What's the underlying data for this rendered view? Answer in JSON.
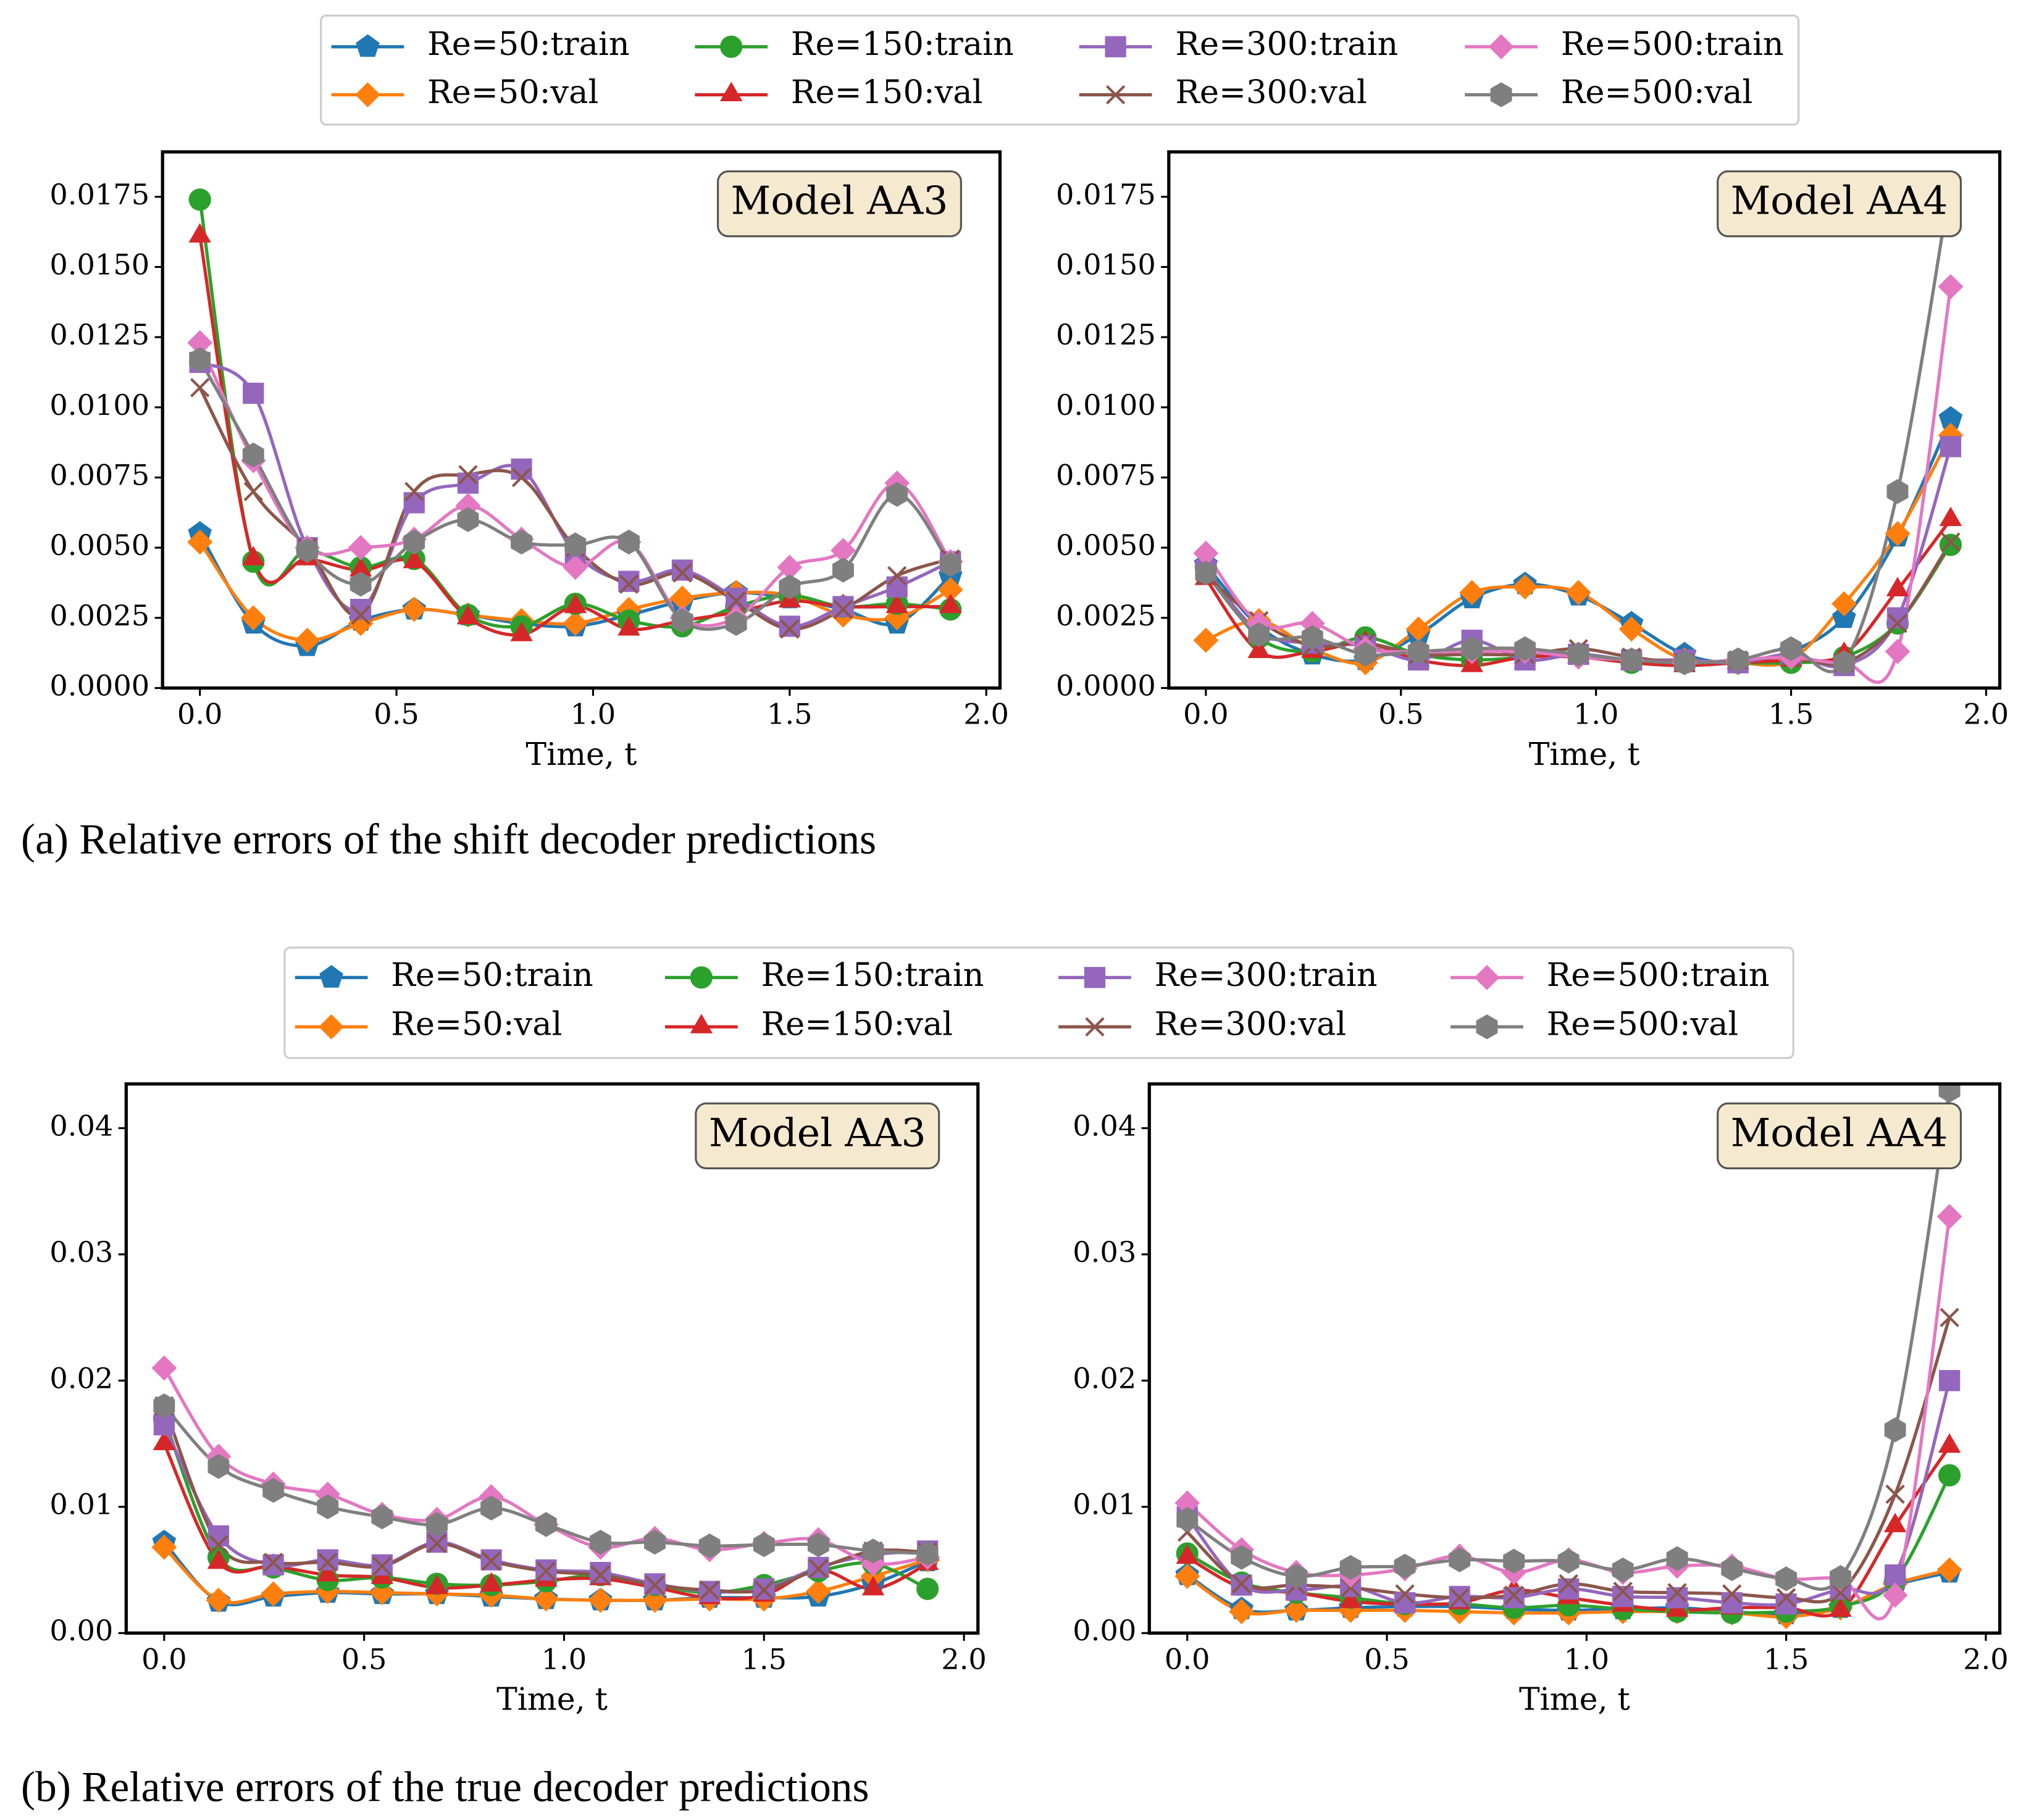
{
  "captions": [
    "(a) Relative errors of the shift decoder predictions",
    "(b) Relative errors of the true decoder predictions"
  ],
  "chart_data": [
    {
      "type": "line",
      "annotation": "Model AA3",
      "xlabel": "Time, t",
      "legend": "upper center",
      "x": [
        0,
        0.136,
        0.273,
        0.409,
        0.545,
        0.682,
        0.818,
        0.955,
        1.091,
        1.227,
        1.364,
        1.5,
        1.636,
        1.773,
        1.909
      ],
      "xlim": [
        -0.095,
        2.035
      ],
      "xticks": [
        {
          "value": 0,
          "label": "0.0"
        },
        {
          "value": 0.5,
          "label": "0.5"
        },
        {
          "value": 1,
          "label": "1.0"
        },
        {
          "value": 1.5,
          "label": "1.5"
        },
        {
          "value": 2,
          "label": "2.0"
        }
      ],
      "ylim": [
        0,
        0.0191
      ],
      "yticks": [
        {
          "value": 0,
          "label": "0.0000"
        },
        {
          "value": 0.0025,
          "label": "0.0025"
        },
        {
          "value": 0.005,
          "label": "0.0050"
        },
        {
          "value": 0.0075,
          "label": "0.0075"
        },
        {
          "value": 0.01,
          "label": "0.0100"
        },
        {
          "value": 0.0125,
          "label": "0.0125"
        },
        {
          "value": 0.015,
          "label": "0.0150"
        },
        {
          "value": 0.0175,
          "label": "0.0175"
        }
      ],
      "series": [
        {
          "name": "Re=50:train",
          "color": "#1f77b4",
          "marker": "pentagon",
          "values": [
            0.0055,
            0.0023,
            0.0015,
            0.0024,
            0.0028,
            0.0026,
            0.0023,
            0.0022,
            0.0026,
            0.0031,
            0.0034,
            0.0032,
            0.0028,
            0.0023,
            0.004
          ]
        },
        {
          "name": "Re=50:val",
          "color": "#ff7f0e",
          "marker": "diamond",
          "values": [
            0.0052,
            0.0025,
            0.0017,
            0.0023,
            0.0028,
            0.0026,
            0.0024,
            0.0023,
            0.0028,
            0.0032,
            0.0034,
            0.0033,
            0.0026,
            0.0025,
            0.0035
          ]
        },
        {
          "name": "Re=150:train",
          "color": "#2ca02c",
          "marker": "circle",
          "values": [
            0.0174,
            0.0045,
            0.0049,
            0.0043,
            0.0046,
            0.0026,
            0.0022,
            0.003,
            0.0024,
            0.0022,
            0.0029,
            0.0033,
            0.0029,
            0.003,
            0.0028
          ]
        },
        {
          "name": "Re=150:val",
          "color": "#d62728",
          "marker": "triangle",
          "values": [
            0.0161,
            0.0046,
            0.0046,
            0.0042,
            0.0045,
            0.0025,
            0.0019,
            0.0029,
            0.0021,
            0.0024,
            0.0027,
            0.0031,
            0.0029,
            0.0029,
            0.0029
          ]
        },
        {
          "name": "Re=300:train",
          "color": "#9467bd",
          "marker": "square",
          "values": [
            0.0116,
            0.0105,
            0.005,
            0.0028,
            0.0066,
            0.0073,
            0.0078,
            0.0048,
            0.0038,
            0.0042,
            0.0032,
            0.0022,
            0.0029,
            0.0036,
            0.0045
          ]
        },
        {
          "name": "Re=300:val",
          "color": "#8c564b",
          "marker": "x",
          "values": [
            0.0107,
            0.007,
            0.005,
            0.0026,
            0.007,
            0.0076,
            0.0075,
            0.005,
            0.0037,
            0.0041,
            0.0031,
            0.0021,
            0.0028,
            0.004,
            0.0046
          ]
        },
        {
          "name": "Re=500:train",
          "color": "#e377c2",
          "marker": "diamond",
          "values": [
            0.0123,
            0.0081,
            0.005,
            0.005,
            0.0053,
            0.0065,
            0.0053,
            0.0043,
            0.0052,
            0.0025,
            0.0025,
            0.0043,
            0.0049,
            0.0073,
            0.0045
          ]
        },
        {
          "name": "Re=500:val",
          "color": "#7f7f7f",
          "marker": "hexagon",
          "values": [
            0.0117,
            0.0083,
            0.0049,
            0.0037,
            0.0052,
            0.006,
            0.0052,
            0.0051,
            0.0052,
            0.0024,
            0.0023,
            0.0036,
            0.0042,
            0.0069,
            0.0044
          ]
        }
      ]
    },
    {
      "type": "line",
      "annotation": "Model AA4",
      "xlabel": "Time, t",
      "x": [
        0,
        0.136,
        0.273,
        0.409,
        0.545,
        0.682,
        0.818,
        0.955,
        1.091,
        1.227,
        1.364,
        1.5,
        1.636,
        1.773,
        1.909
      ],
      "xlim": [
        -0.095,
        2.035
      ],
      "xticks": [
        {
          "value": 0,
          "label": "0.0"
        },
        {
          "value": 0.5,
          "label": "0.5"
        },
        {
          "value": 1,
          "label": "1.0"
        },
        {
          "value": 1.5,
          "label": "1.5"
        },
        {
          "value": 2,
          "label": "2.0"
        }
      ],
      "ylim": [
        0,
        0.0191
      ],
      "yticks": [
        {
          "value": 0,
          "label": "0.0000"
        },
        {
          "value": 0.0025,
          "label": "0.0025"
        },
        {
          "value": 0.005,
          "label": "0.0050"
        },
        {
          "value": 0.0075,
          "label": "0.0075"
        },
        {
          "value": 0.01,
          "label": "0.0100"
        },
        {
          "value": 0.0125,
          "label": "0.0125"
        },
        {
          "value": 0.015,
          "label": "0.0150"
        },
        {
          "value": 0.0175,
          "label": "0.0175"
        }
      ],
      "series": [
        {
          "color": "#1f77b4",
          "marker": "pentagon",
          "values": [
            0.0044,
            0.0022,
            0.0012,
            0.001,
            0.0019,
            0.0032,
            0.0037,
            0.0033,
            0.0023,
            0.0012,
            0.0009,
            0.0013,
            0.0025,
            0.0054,
            0.0096
          ]
        },
        {
          "color": "#ff7f0e",
          "marker": "diamond",
          "values": [
            0.0017,
            0.0024,
            0.0014,
            0.0009,
            0.0021,
            0.0034,
            0.0036,
            0.0034,
            0.0021,
            0.001,
            0.0009,
            0.001,
            0.003,
            0.0055,
            0.009
          ]
        },
        {
          "color": "#2ca02c",
          "marker": "circle",
          "values": [
            0.0043,
            0.0018,
            0.0013,
            0.0018,
            0.0012,
            0.001,
            0.0011,
            0.0012,
            0.0009,
            0.0009,
            0.0009,
            0.0009,
            0.0011,
            0.0023,
            0.0051
          ]
        },
        {
          "color": "#d62728",
          "marker": "triangle",
          "values": [
            0.0039,
            0.0013,
            0.0013,
            0.0016,
            0.001,
            0.0008,
            0.0011,
            0.0011,
            0.0009,
            0.0008,
            0.0009,
            0.001,
            0.0012,
            0.0035,
            0.006
          ]
        },
        {
          "color": "#9467bd",
          "marker": "square",
          "values": [
            0.0042,
            0.002,
            0.0016,
            0.0015,
            0.001,
            0.0017,
            0.001,
            0.0012,
            0.001,
            0.001,
            0.0009,
            0.0012,
            0.0008,
            0.0025,
            0.0086
          ]
        },
        {
          "color": "#8c564b",
          "marker": "x",
          "values": [
            0.004,
            0.0024,
            0.0015,
            0.0016,
            0.0012,
            0.0012,
            0.0012,
            0.0014,
            0.0011,
            0.0009,
            0.001,
            0.0011,
            0.0009,
            0.0023,
            0.0052
          ]
        },
        {
          "color": "#e377c2",
          "marker": "diamond",
          "values": [
            0.0048,
            0.0023,
            0.0023,
            0.0014,
            0.0013,
            0.0013,
            0.0013,
            0.0011,
            0.001,
            0.0009,
            0.001,
            0.0011,
            0.0009,
            0.0013,
            0.0143
          ]
        },
        {
          "color": "#7f7f7f",
          "marker": "hexagon",
          "values": [
            0.0041,
            0.0019,
            0.0018,
            0.0012,
            0.0013,
            0.0014,
            0.0014,
            0.0012,
            0.001,
            0.0009,
            0.001,
            0.0014,
            0.0009,
            0.007,
            0.018
          ]
        }
      ]
    },
    {
      "type": "line",
      "annotation": "Model AA3",
      "xlabel": "Time, t",
      "legend": "upper center",
      "x": [
        0,
        0.136,
        0.273,
        0.409,
        0.545,
        0.682,
        0.818,
        0.955,
        1.091,
        1.227,
        1.364,
        1.5,
        1.636,
        1.773,
        1.909
      ],
      "xlim": [
        -0.095,
        2.035
      ],
      "xticks": [
        {
          "value": 0,
          "label": "0.0"
        },
        {
          "value": 0.5,
          "label": "0.5"
        },
        {
          "value": 1,
          "label": "1.0"
        },
        {
          "value": 1.5,
          "label": "1.5"
        },
        {
          "value": 2,
          "label": "2.0"
        }
      ],
      "ylim": [
        0,
        0.0435
      ],
      "yticks": [
        {
          "value": 0,
          "label": "0.00"
        },
        {
          "value": 0.01,
          "label": "0.01"
        },
        {
          "value": 0.02,
          "label": "0.02"
        },
        {
          "value": 0.03,
          "label": "0.03"
        },
        {
          "value": 0.04,
          "label": "0.04"
        }
      ],
      "series": [
        {
          "name": "Re=50:train",
          "color": "#1f77b4",
          "marker": "pentagon",
          "values": [
            0.0072,
            0.0025,
            0.0029,
            0.0032,
            0.0031,
            0.0031,
            0.0029,
            0.0027,
            0.0026,
            0.0026,
            0.0028,
            0.0028,
            0.0029,
            0.0039,
            0.0057
          ]
        },
        {
          "name": "Re=50:val",
          "color": "#ff7f0e",
          "marker": "diamond",
          "values": [
            0.0068,
            0.0026,
            0.0031,
            0.0033,
            0.0032,
            0.0031,
            0.003,
            0.0027,
            0.0026,
            0.0026,
            0.0027,
            0.0027,
            0.0033,
            0.0045,
            0.0058
          ]
        },
        {
          "name": "Re=150:train",
          "color": "#2ca02c",
          "marker": "circle",
          "values": [
            0.017,
            0.006,
            0.0052,
            0.0042,
            0.0044,
            0.0039,
            0.0038,
            0.0041,
            0.0046,
            0.0038,
            0.0032,
            0.0038,
            0.0049,
            0.0055,
            0.0035
          ]
        },
        {
          "name": "Re=150:val",
          "color": "#d62728",
          "marker": "triangle",
          "values": [
            0.015,
            0.0056,
            0.0053,
            0.0046,
            0.0044,
            0.0036,
            0.0038,
            0.0042,
            0.0043,
            0.0036,
            0.0028,
            0.003,
            0.005,
            0.0035,
            0.0055
          ]
        },
        {
          "name": "Re=300:train",
          "color": "#9467bd",
          "marker": "square",
          "values": [
            0.0165,
            0.0077,
            0.0054,
            0.0058,
            0.0054,
            0.0072,
            0.0058,
            0.005,
            0.0048,
            0.0039,
            0.0033,
            0.0035,
            0.0052,
            0.0062,
            0.0065
          ]
        },
        {
          "name": "Re=300:val",
          "color": "#8c564b",
          "marker": "x",
          "values": [
            0.018,
            0.007,
            0.0056,
            0.0056,
            0.0053,
            0.0071,
            0.0057,
            0.0049,
            0.0046,
            0.0038,
            0.0034,
            0.0034,
            0.0051,
            0.0065,
            0.0064
          ]
        },
        {
          "name": "Re=500:train",
          "color": "#e377c2",
          "marker": "diamond",
          "values": [
            0.021,
            0.014,
            0.0118,
            0.011,
            0.0094,
            0.009,
            0.0108,
            0.0086,
            0.0068,
            0.0075,
            0.0066,
            0.0071,
            0.0074,
            0.0055,
            0.006
          ]
        },
        {
          "name": "Re=500:val",
          "color": "#7f7f7f",
          "marker": "hexagon",
          "values": [
            0.018,
            0.0132,
            0.0113,
            0.01,
            0.0092,
            0.0086,
            0.0099,
            0.0086,
            0.0072,
            0.0072,
            0.0069,
            0.007,
            0.007,
            0.0065,
            0.0063
          ]
        }
      ]
    },
    {
      "type": "line",
      "annotation": "Model AA4",
      "xlabel": "Time, t",
      "x": [
        0,
        0.136,
        0.273,
        0.409,
        0.545,
        0.682,
        0.818,
        0.955,
        1.091,
        1.227,
        1.364,
        1.5,
        1.636,
        1.773,
        1.909
      ],
      "xlim": [
        -0.095,
        2.035
      ],
      "xticks": [
        {
          "value": 0,
          "label": "0.0"
        },
        {
          "value": 0.5,
          "label": "0.5"
        },
        {
          "value": 1,
          "label": "1.0"
        },
        {
          "value": 1.5,
          "label": "1.5"
        },
        {
          "value": 2,
          "label": "2.0"
        }
      ],
      "ylim": [
        0,
        0.0435
      ],
      "yticks": [
        {
          "value": 0,
          "label": "0.00"
        },
        {
          "value": 0.01,
          "label": "0.01"
        },
        {
          "value": 0.02,
          "label": "0.02"
        },
        {
          "value": 0.03,
          "label": "0.03"
        },
        {
          "value": 0.04,
          "label": "0.04"
        }
      ],
      "series": [
        {
          "color": "#1f77b4",
          "marker": "pentagon",
          "values": [
            0.0046,
            0.0019,
            0.0018,
            0.002,
            0.0021,
            0.0021,
            0.0019,
            0.0018,
            0.0019,
            0.002,
            0.0017,
            0.0015,
            0.002,
            0.0038,
            0.0048
          ]
        },
        {
          "color": "#ff7f0e",
          "marker": "diamond",
          "values": [
            0.0045,
            0.0017,
            0.0018,
            0.0018,
            0.0018,
            0.0017,
            0.0016,
            0.0016,
            0.0017,
            0.0017,
            0.0016,
            0.0013,
            0.002,
            0.0039,
            0.005
          ]
        },
        {
          "color": "#2ca02c",
          "marker": "circle",
          "values": [
            0.0063,
            0.004,
            0.0032,
            0.0028,
            0.0023,
            0.0023,
            0.002,
            0.0022,
            0.0019,
            0.0017,
            0.0016,
            0.0017,
            0.0021,
            0.0042,
            0.0125
          ]
        },
        {
          "color": "#d62728",
          "marker": "triangle",
          "values": [
            0.006,
            0.0036,
            0.0032,
            0.0025,
            0.0023,
            0.0024,
            0.0034,
            0.0028,
            0.0022,
            0.0018,
            0.002,
            0.002,
            0.0018,
            0.0085,
            0.0148
          ]
        },
        {
          "color": "#9467bd",
          "marker": "square",
          "values": [
            0.0092,
            0.0038,
            0.0034,
            0.0037,
            0.0024,
            0.0029,
            0.0028,
            0.0035,
            0.0029,
            0.0028,
            0.0024,
            0.0023,
            0.0035,
            0.0046,
            0.02
          ]
        },
        {
          "color": "#8c564b",
          "marker": "x",
          "values": [
            0.008,
            0.0039,
            0.0038,
            0.0036,
            0.0031,
            0.0028,
            0.003,
            0.0039,
            0.0033,
            0.0032,
            0.0031,
            0.0028,
            0.0032,
            0.011,
            0.025
          ]
        },
        {
          "color": "#e377c2",
          "marker": "diamond",
          "values": [
            0.0103,
            0.0066,
            0.0048,
            0.0046,
            0.0051,
            0.0061,
            0.0048,
            0.0058,
            0.0048,
            0.0053,
            0.0053,
            0.0043,
            0.0043,
            0.003,
            0.033
          ]
        },
        {
          "color": "#7f7f7f",
          "marker": "hexagon",
          "values": [
            0.009,
            0.006,
            0.0045,
            0.0052,
            0.0053,
            0.0058,
            0.0057,
            0.0057,
            0.005,
            0.0059,
            0.0051,
            0.0043,
            0.0044,
            0.0161,
            0.043
          ]
        }
      ]
    }
  ]
}
